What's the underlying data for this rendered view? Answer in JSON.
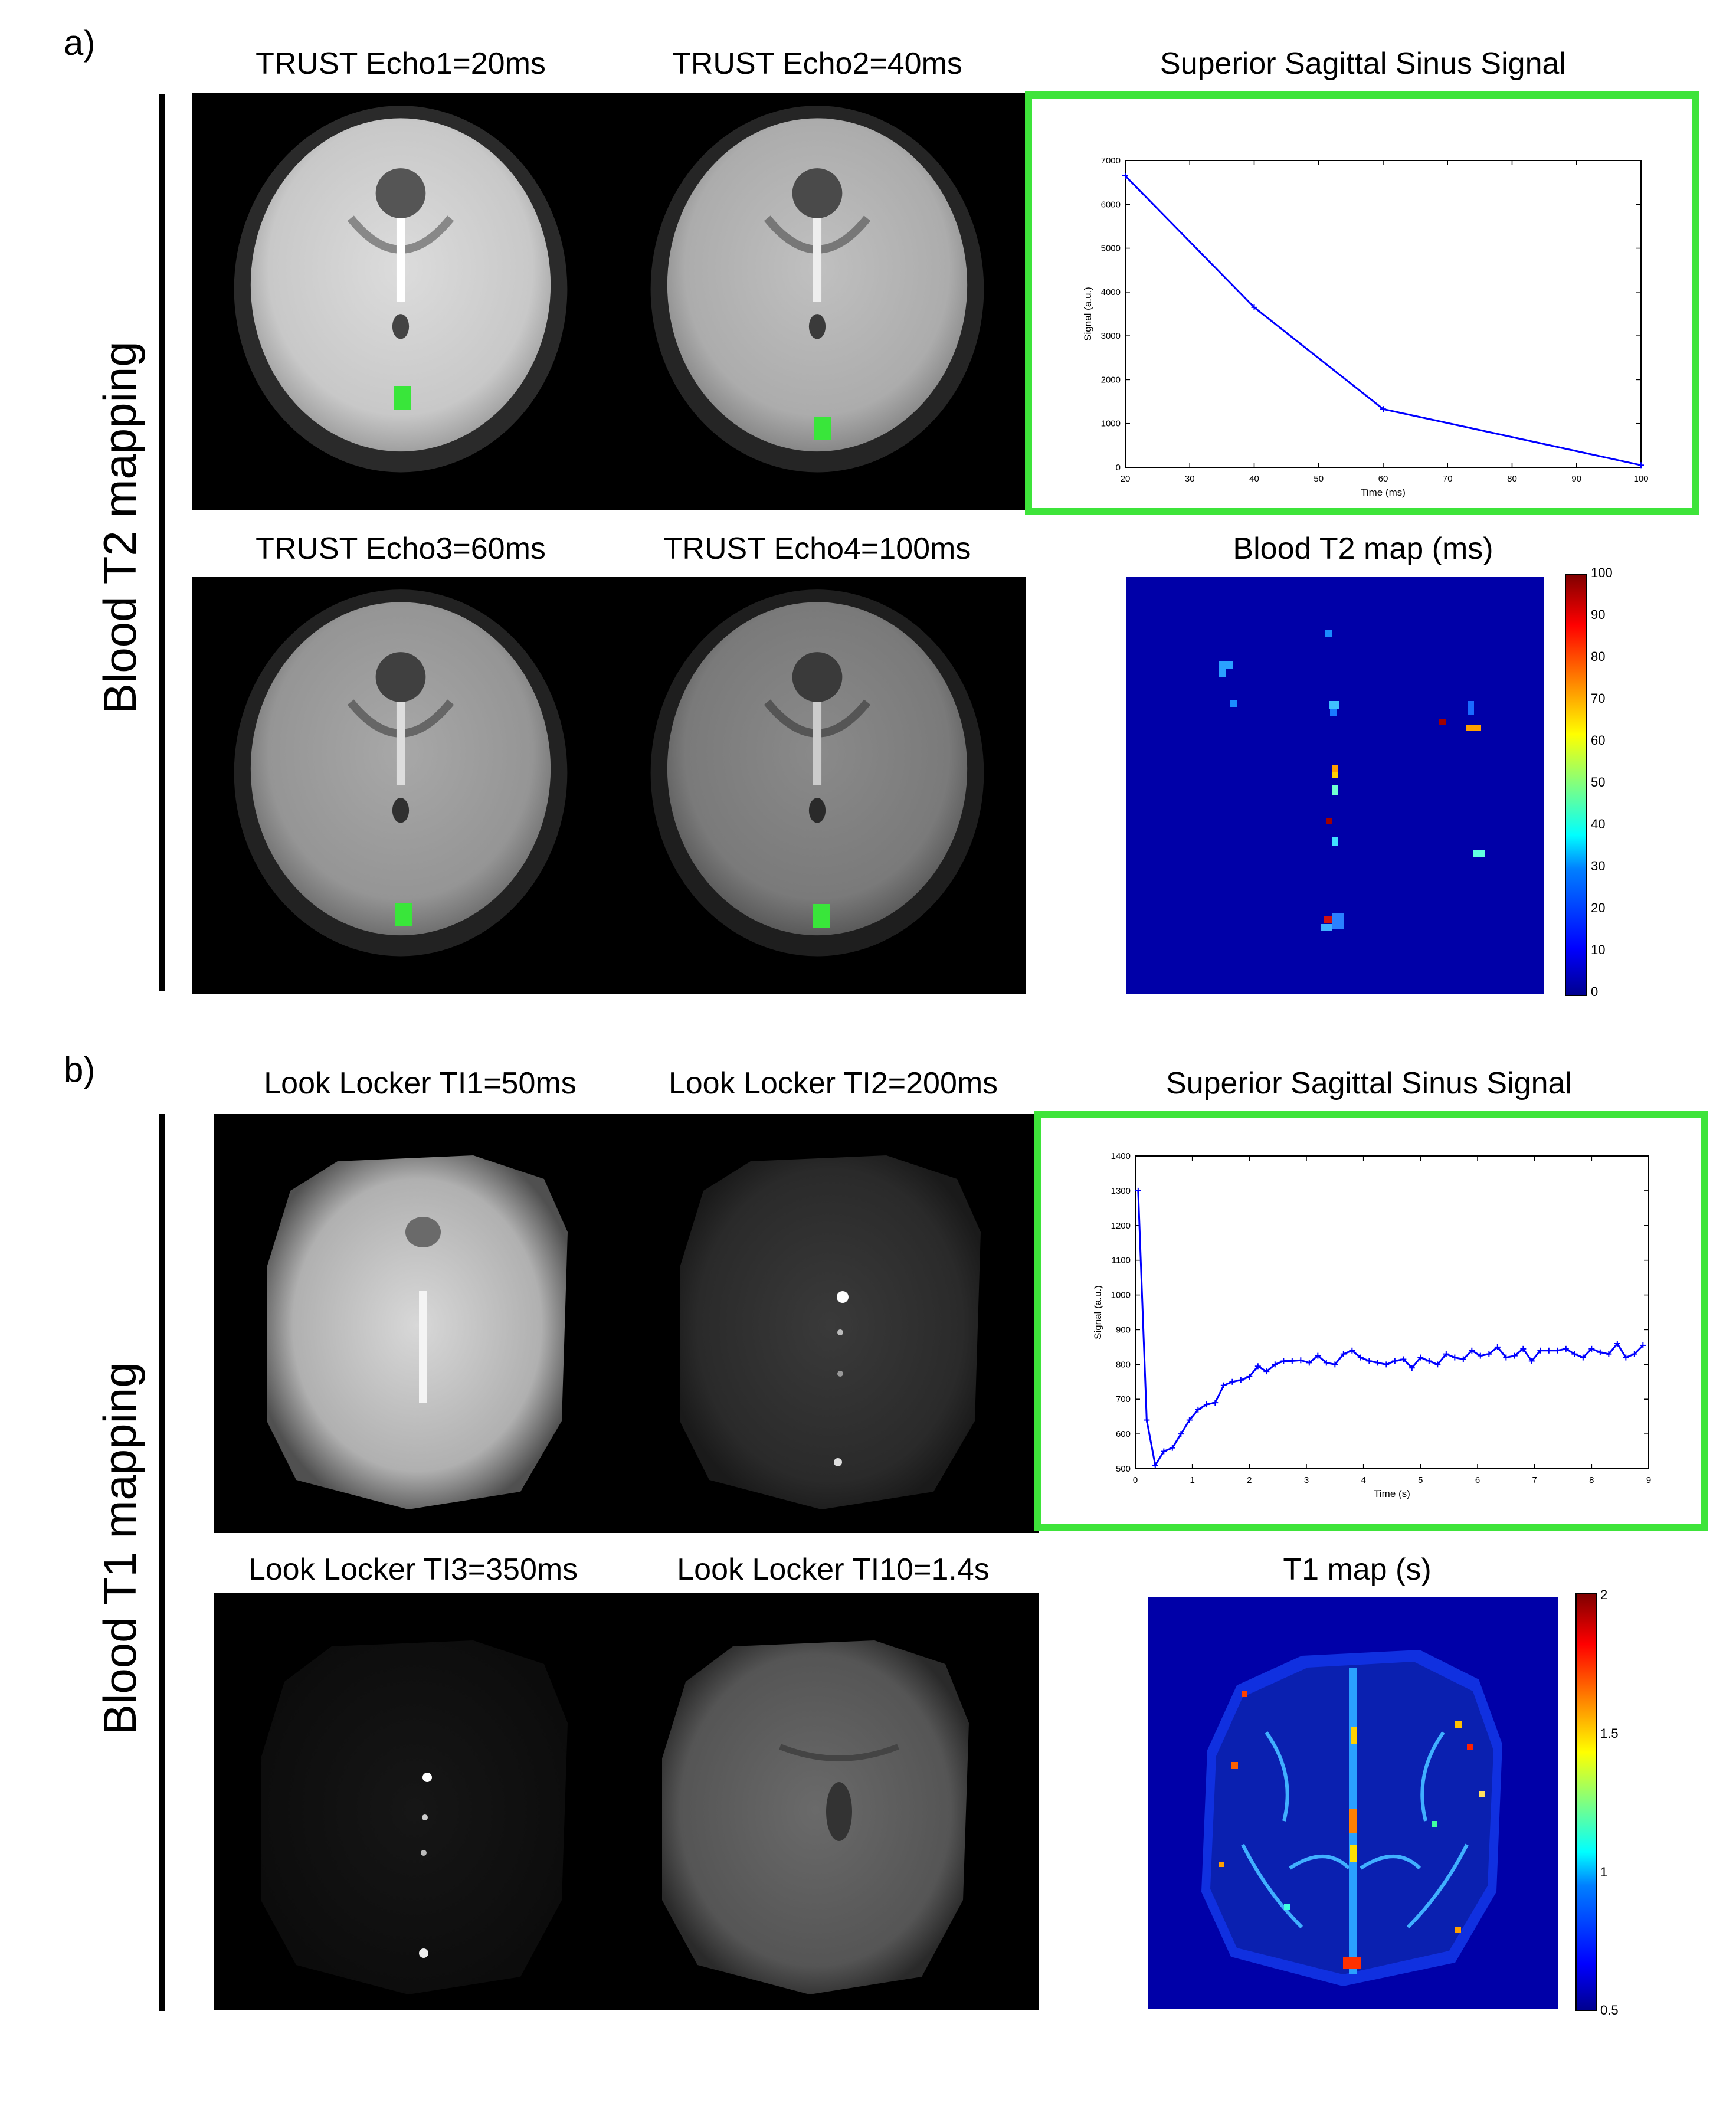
{
  "panels": {
    "a": {
      "label": "a)",
      "side_label": "Blood  T2 mapping",
      "images": [
        {
          "title": "TRUST Echo1=20ms"
        },
        {
          "title": "TRUST Echo2=40ms"
        },
        {
          "title": "TRUST Echo3=60ms"
        },
        {
          "title": "TRUST Echo4=100ms"
        }
      ],
      "plot_title": "Superior Sagittal Sinus Signal",
      "map_title": "Blood T2 map (ms)",
      "colorbar_ticks": [
        "100",
        "90",
        "80",
        "70",
        "60",
        "50",
        "40",
        "30",
        "20",
        "10",
        "0"
      ]
    },
    "b": {
      "label": "b)",
      "side_label": "Blood  T1 mapping",
      "images": [
        {
          "title": "Look Locker TI1=50ms"
        },
        {
          "title": "Look Locker TI2=200ms"
        },
        {
          "title": "Look Locker TI3=350ms"
        },
        {
          "title": "Look Locker TI10=1.4s"
        }
      ],
      "plot_title": "Superior Sagittal Sinus Signal",
      "map_title": "T1 map (s)",
      "colorbar_ticks": [
        "2",
        "1.5",
        "1",
        "0.5"
      ]
    }
  },
  "chart_data": [
    {
      "type": "line",
      "xlabel": "Time (ms)",
      "ylabel": "Signal (a.u.)",
      "xlim": [
        20,
        100
      ],
      "ylim": [
        0,
        7000
      ],
      "xticks": [
        20,
        30,
        40,
        50,
        60,
        70,
        80,
        90,
        100
      ],
      "yticks": [
        0,
        1000,
        2000,
        3000,
        4000,
        5000,
        6000,
        7000
      ],
      "x": [
        20,
        40,
        60,
        100
      ],
      "y": [
        6650,
        3650,
        1330,
        50
      ],
      "color": "#0000ff"
    },
    {
      "type": "line",
      "xlabel": "Time (s)",
      "ylabel": "Signal (a.u.)",
      "xlim": [
        0,
        9
      ],
      "ylim": [
        500,
        1400
      ],
      "xticks": [
        0,
        1,
        2,
        3,
        4,
        5,
        6,
        7,
        8,
        9
      ],
      "yticks": [
        500,
        600,
        700,
        800,
        900,
        1000,
        1100,
        1200,
        1300,
        1400
      ],
      "x": [
        0.05,
        0.2,
        0.35,
        0.5,
        0.65,
        0.8,
        0.95,
        1.1,
        1.25,
        1.4,
        1.55,
        1.7,
        1.85,
        2.0,
        2.15,
        2.3,
        2.45,
        2.6,
        2.75,
        2.9,
        3.05,
        3.2,
        3.35,
        3.5,
        3.65,
        3.8,
        3.95,
        4.1,
        4.25,
        4.4,
        4.55,
        4.7,
        4.85,
        5.0,
        5.15,
        5.3,
        5.45,
        5.6,
        5.75,
        5.9,
        6.05,
        6.2,
        6.35,
        6.5,
        6.65,
        6.8,
        6.95,
        7.1,
        7.25,
        7.4,
        7.55,
        7.7,
        7.85,
        8.0,
        8.15,
        8.3,
        8.45,
        8.6,
        8.75,
        8.9
      ],
      "y": [
        1300,
        640,
        510,
        550,
        560,
        600,
        640,
        670,
        685,
        690,
        740,
        750,
        755,
        765,
        795,
        780,
        800,
        810,
        810,
        812,
        805,
        825,
        805,
        800,
        830,
        840,
        820,
        810,
        805,
        800,
        810,
        815,
        790,
        820,
        810,
        800,
        830,
        820,
        815,
        840,
        825,
        830,
        850,
        820,
        825,
        845,
        810,
        840,
        840,
        840,
        845,
        830,
        820,
        845,
        835,
        830,
        860,
        820,
        830,
        855
      ],
      "color": "#0000ff"
    }
  ]
}
